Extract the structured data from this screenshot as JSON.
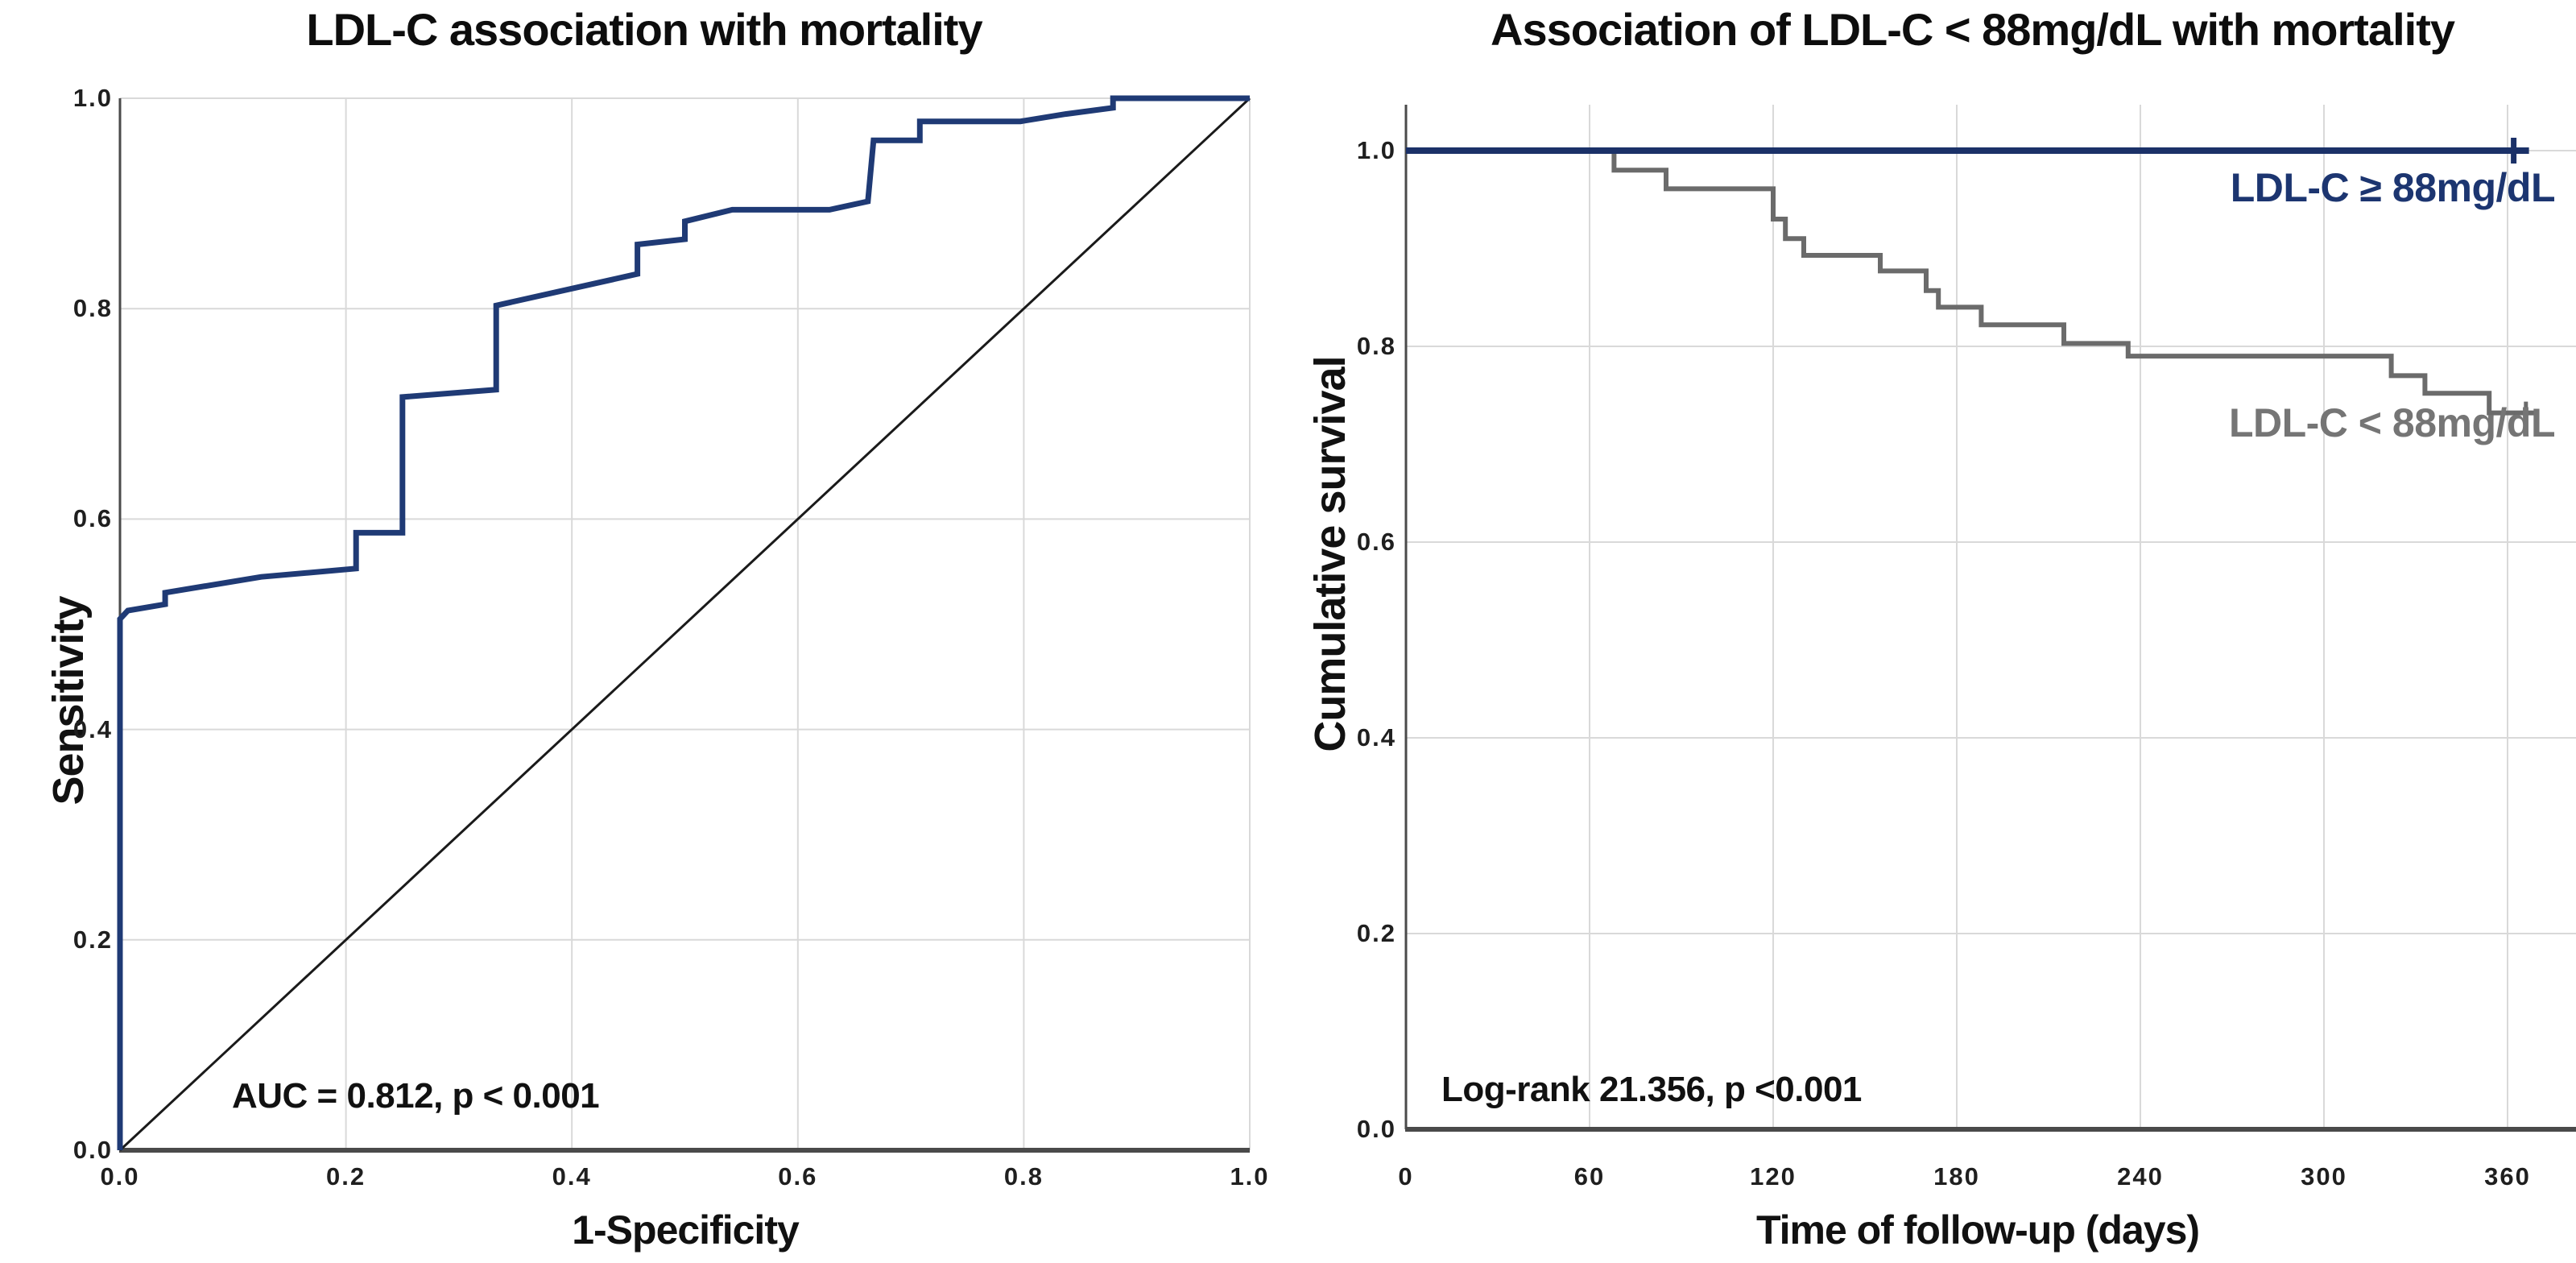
{
  "figure": {
    "background": "#ffffff",
    "grid_color": "#d9d9d9",
    "axis_color": "#4a4a4a",
    "text_color": "#111111"
  },
  "chart_data": [
    {
      "type": "line",
      "id": "roc",
      "title": "LDL-C association with mortality",
      "xlabel": "1-Specificity",
      "ylabel": "Sensitivity",
      "annotation": "AUC = 0.812, p < 0.001",
      "auc": 0.812,
      "p_value": "< 0.001",
      "xlim": [
        0.0,
        1.0
      ],
      "ylim": [
        0.0,
        1.0
      ],
      "x_ticks": [
        "0.0",
        "0.2",
        "0.4",
        "0.6",
        "0.8",
        "1.0"
      ],
      "y_ticks": [
        "0.0",
        "0.2",
        "0.4",
        "0.6",
        "0.8",
        "1.0"
      ],
      "grid": true,
      "legend_position": "none",
      "series": [
        {
          "name": "ROC curve",
          "color": "#1f3a75",
          "width": 7,
          "points": [
            [
              0.0,
              0.0
            ],
            [
              0.0,
              0.505
            ],
            [
              0.007,
              0.513
            ],
            [
              0.04,
              0.519
            ],
            [
              0.04,
              0.53
            ],
            [
              0.125,
              0.545
            ],
            [
              0.209,
              0.553
            ],
            [
              0.209,
              0.587
            ],
            [
              0.25,
              0.587
            ],
            [
              0.25,
              0.716
            ],
            [
              0.333,
              0.723
            ],
            [
              0.333,
              0.803
            ],
            [
              0.458,
              0.833
            ],
            [
              0.458,
              0.861
            ],
            [
              0.5,
              0.866
            ],
            [
              0.5,
              0.883
            ],
            [
              0.542,
              0.894
            ],
            [
              0.628,
              0.894
            ],
            [
              0.662,
              0.902
            ],
            [
              0.667,
              0.96
            ],
            [
              0.708,
              0.96
            ],
            [
              0.708,
              0.978
            ],
            [
              0.797,
              0.978
            ],
            [
              0.837,
              0.985
            ],
            [
              0.879,
              0.991
            ],
            [
              0.879,
              1.0
            ],
            [
              1.0,
              1.0
            ]
          ],
          "censors": []
        },
        {
          "name": "Reference diagonal",
          "color": "#1a1a1a",
          "width": 3,
          "points": [
            [
              0.0,
              0.0
            ],
            [
              1.0,
              1.0
            ]
          ],
          "censors": []
        }
      ]
    },
    {
      "type": "line",
      "id": "km",
      "title": "Association of LDL-C < 88mg/dL with mortality",
      "xlabel": "Time of follow-up (days)",
      "ylabel": "Cumulative survival",
      "annotation": "Log-rank 21.356, p <0.001",
      "log_rank": 21.356,
      "p_value": "<0.001",
      "xlim": [
        0,
        382
      ],
      "ylim": [
        0.0,
        1.05
      ],
      "x_ticks": [
        "0",
        "60",
        "120",
        "180",
        "240",
        "300",
        "360"
      ],
      "y_ticks": [
        "0.0",
        "0.2",
        "0.4",
        "0.6",
        "0.8",
        "1.0"
      ],
      "grid": true,
      "legend_position": "inside-right",
      "series": [
        {
          "name": "LDL-C ≥ 88mg/dL",
          "color": "#1b3168",
          "label_color": "#1c3570",
          "width": 8,
          "points": [
            [
              0,
              1.0
            ],
            [
              367,
              1.0
            ]
          ],
          "censors": [
            [
              362,
              1.0
            ]
          ]
        },
        {
          "name": "LDL-C < 88mg/dL",
          "color": "#6b6b6b",
          "label_color": "#757575",
          "width": 6,
          "points": [
            [
              0,
              1.0
            ],
            [
              68,
              1.0
            ],
            [
              68,
              0.98
            ],
            [
              85,
              0.98
            ],
            [
              85,
              0.961
            ],
            [
              120,
              0.961
            ],
            [
              120,
              0.93
            ],
            [
              124,
              0.93
            ],
            [
              124,
              0.91
            ],
            [
              130,
              0.91
            ],
            [
              130,
              0.893
            ],
            [
              155,
              0.893
            ],
            [
              155,
              0.877
            ],
            [
              170,
              0.877
            ],
            [
              170,
              0.857
            ],
            [
              174,
              0.857
            ],
            [
              174,
              0.84
            ],
            [
              188,
              0.84
            ],
            [
              188,
              0.822
            ],
            [
              215,
              0.822
            ],
            [
              215,
              0.803
            ],
            [
              236,
              0.803
            ],
            [
              236,
              0.79
            ],
            [
              322,
              0.79
            ],
            [
              322,
              0.77
            ],
            [
              333,
              0.77
            ],
            [
              333,
              0.752
            ],
            [
              354,
              0.752
            ],
            [
              354,
              0.732
            ],
            [
              370,
              0.732
            ]
          ],
          "censors": [
            [
              366,
              0.732
            ]
          ]
        }
      ]
    }
  ]
}
